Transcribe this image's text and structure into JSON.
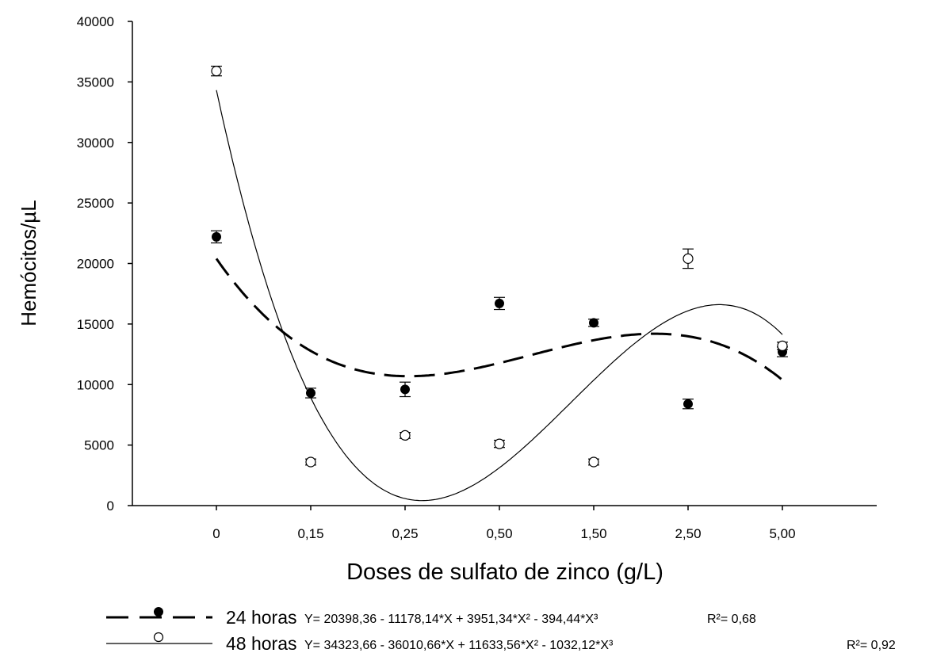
{
  "chart_data": {
    "type": "scatter",
    "xlabel": "Doses de sulfato de zinco (g/L)",
    "ylabel": "Hemócitos/µL",
    "categories": [
      "0",
      "0,15",
      "0,25",
      "0,50",
      "1,50",
      "2,50",
      "5,00"
    ],
    "ylim": [
      0,
      40000
    ],
    "yticks": [
      0,
      5000,
      10000,
      15000,
      20000,
      25000,
      30000,
      35000,
      40000
    ],
    "grid": false,
    "legend_position": "bottom",
    "series": [
      {
        "name": "24 horas",
        "marker": "filled-circle",
        "line_style": "dashed",
        "equation": "Y= 20398,36 - 11178,14*X + 3951,34*X² - 394,44*X³",
        "r2": "R²= 0,68",
        "values": [
          22200,
          9300,
          9600,
          16700,
          15100,
          8400,
          12700
        ],
        "errors": [
          500,
          400,
          600,
          500,
          300,
          400,
          400
        ],
        "coefficients": [
          20398.36,
          -11178.14,
          3951.34,
          -394.44
        ]
      },
      {
        "name": "48 horas",
        "marker": "open-circle",
        "line_style": "solid",
        "equation": "Y= 34323,66 - 36010,66*X + 11633,56*X² - 1032,12*X³",
        "r2": "R²= 0,92",
        "values": [
          35900,
          3600,
          5800,
          5100,
          3600,
          20400,
          13200
        ],
        "errors": [
          400,
          250,
          250,
          300,
          250,
          800,
          300
        ],
        "coefficients": [
          34323.66,
          -36010.66,
          11633.56,
          -1032.12
        ]
      }
    ]
  }
}
